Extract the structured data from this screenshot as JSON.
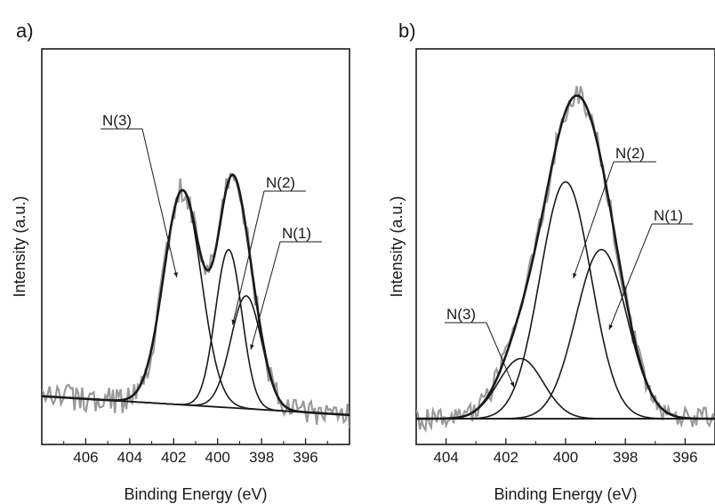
{
  "chart_data": [
    {
      "type": "line",
      "panel_label": "a)",
      "title": "",
      "xlabel": "Binding Energy (eV)",
      "ylabel": "Intensity (a.u.)",
      "x_reversed": true,
      "xlim": [
        408,
        394
      ],
      "ylim": [
        0,
        1
      ],
      "grid": false,
      "xticks": [
        406,
        404,
        402,
        400,
        398,
        396
      ],
      "baseline": {
        "x": [
          408,
          394
        ],
        "y": [
          0.1,
          0.05
        ]
      },
      "components": [
        {
          "name": "N(3)",
          "center": 401.6,
          "height": 0.57,
          "sigma": 0.85
        },
        {
          "name": "N(2)",
          "center": 399.5,
          "height": 0.42,
          "sigma": 0.6
        },
        {
          "name": "N(1)",
          "center": 398.7,
          "height": 0.3,
          "sigma": 0.7
        }
      ],
      "raw_noise_amplitude": 0.035,
      "annotations": [
        {
          "text": "N(3)",
          "points_to": "N(3)"
        },
        {
          "text": "N(2)",
          "points_to": "N(2)"
        },
        {
          "text": "N(1)",
          "points_to": "N(1)"
        }
      ]
    },
    {
      "type": "line",
      "panel_label": "b)",
      "title": "",
      "xlabel": "Binding Energy (eV)",
      "ylabel": "Intensity (a.u.)",
      "x_reversed": true,
      "xlim": [
        405,
        395
      ],
      "ylim": [
        0,
        1
      ],
      "grid": false,
      "xticks": [
        404,
        402,
        400,
        398,
        396
      ],
      "baseline": {
        "x": [
          405,
          395
        ],
        "y": [
          0.04,
          0.04
        ]
      },
      "components": [
        {
          "name": "N(3)",
          "center": 401.5,
          "height": 0.16,
          "sigma": 0.75
        },
        {
          "name": "N(2)",
          "center": 400.0,
          "height": 0.63,
          "sigma": 0.85
        },
        {
          "name": "N(1)",
          "center": 398.8,
          "height": 0.45,
          "sigma": 0.85
        }
      ],
      "raw_noise_amplitude": 0.03,
      "annotations": [
        {
          "text": "N(3)",
          "points_to": "N(3)"
        },
        {
          "text": "N(2)",
          "points_to": "N(2)"
        },
        {
          "text": "N(1)",
          "points_to": "N(1)"
        }
      ]
    }
  ],
  "colors": {
    "raw": "#9a9a9a",
    "fit": "#1a1a1a",
    "envelope": "#1a1a1a"
  }
}
